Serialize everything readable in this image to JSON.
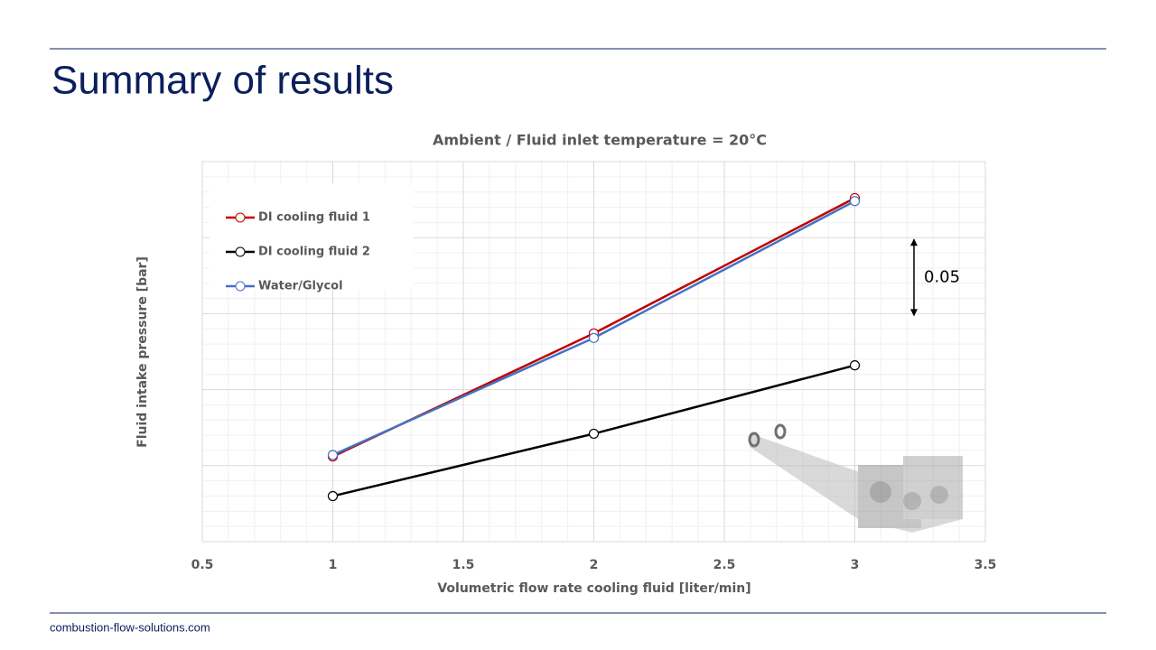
{
  "header": {
    "title": "Summary of results"
  },
  "footer": {
    "text": "combustion-flow-solutions.com"
  },
  "chart_data": {
    "type": "line",
    "title": "Ambient / Fluid inlet temperature = 20°C",
    "x_label": "Volumetric flow rate cooling fluid [liter/min]",
    "y_label": "Fluid intake pressure [bar]",
    "x": [
      1,
      2,
      3
    ],
    "series": [
      {
        "name": "DI cooling fluid 1",
        "color": "#c00000",
        "values": [
          0.056,
          0.137,
          0.226
        ]
      },
      {
        "name": "DI cooling fluid 2",
        "color": "#000000",
        "values": [
          0.03,
          0.071,
          0.116
        ]
      },
      {
        "name": "Water/Glycol",
        "color": "#4472c4",
        "values": [
          0.057,
          0.134,
          0.224
        ]
      }
    ],
    "xlim": [
      0.5,
      3.5
    ],
    "xticks": [
      0.5,
      1,
      1.5,
      2,
      2.5,
      3,
      3.5
    ],
    "ylim": [
      0,
      0.25
    ],
    "yticks": [
      0,
      0.05,
      0.1,
      0.15,
      0.2,
      0.25
    ],
    "ytick_labels": false,
    "grid": true,
    "legend": "upper left",
    "annotation": "0.05"
  }
}
